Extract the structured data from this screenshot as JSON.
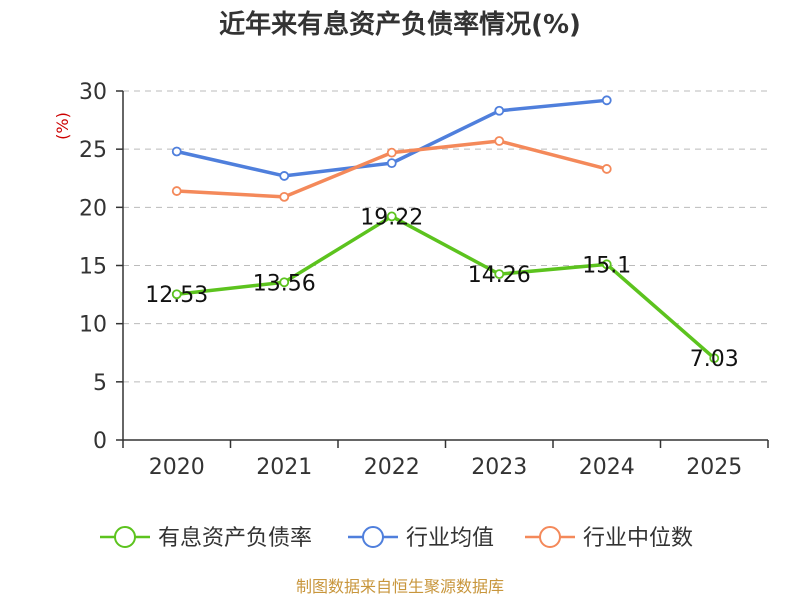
{
  "chart_data": {
    "type": "line",
    "title": "近年来有息资产负债率情况(%)",
    "ylabel": "(%)",
    "xlabel": "",
    "categories": [
      "2020",
      "2021",
      "2022",
      "2023",
      "2024",
      "2025"
    ],
    "ylim": [
      0,
      30
    ],
    "yticks": [
      0,
      5,
      10,
      15,
      20,
      25,
      30
    ],
    "grid": true,
    "legend_position": "bottom",
    "series": [
      {
        "name": "有息资产负债率",
        "color": "#5cc31e",
        "values": [
          12.53,
          13.56,
          19.22,
          14.26,
          15.1,
          7.03
        ],
        "labels": [
          "12.53",
          "13.56",
          "19.22",
          "14.26",
          "15.1",
          "7.03"
        ]
      },
      {
        "name": "行业均值",
        "color": "#4f7fdc",
        "values": [
          24.8,
          22.7,
          23.8,
          28.3,
          29.2,
          null
        ]
      },
      {
        "name": "行业中位数",
        "color": "#f4895a",
        "values": [
          21.4,
          20.9,
          24.7,
          25.7,
          23.3,
          null
        ]
      }
    ]
  },
  "source": "制图数据来自恒生聚源数据库"
}
